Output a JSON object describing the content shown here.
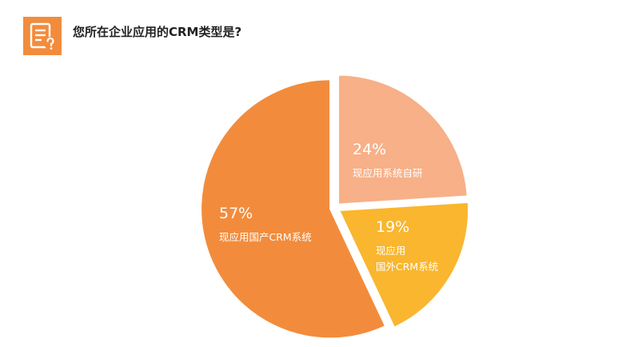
{
  "header": {
    "title": "您所在企业应用的CRM类型是?"
  },
  "colors": {
    "accent": "#f28c3c",
    "slice_domestic": "#f28c3c",
    "slice_self_dev": "#f7b088",
    "slice_foreign": "#f9b62e"
  },
  "icons": {
    "header": "survey-question-icon"
  },
  "chart_data": {
    "type": "pie",
    "slices": [
      {
        "value": 24,
        "percent_label": "24%",
        "label_lines": [
          "现应用系统自研"
        ],
        "color": "#f7b088"
      },
      {
        "value": 19,
        "percent_label": "19%",
        "label_lines": [
          "现应用",
          "国外CRM系统"
        ],
        "color": "#f9b62e"
      },
      {
        "value": 57,
        "percent_label": "57%",
        "label_lines": [
          "现应用国产CRM系统"
        ],
        "color": "#f28c3c"
      }
    ]
  }
}
